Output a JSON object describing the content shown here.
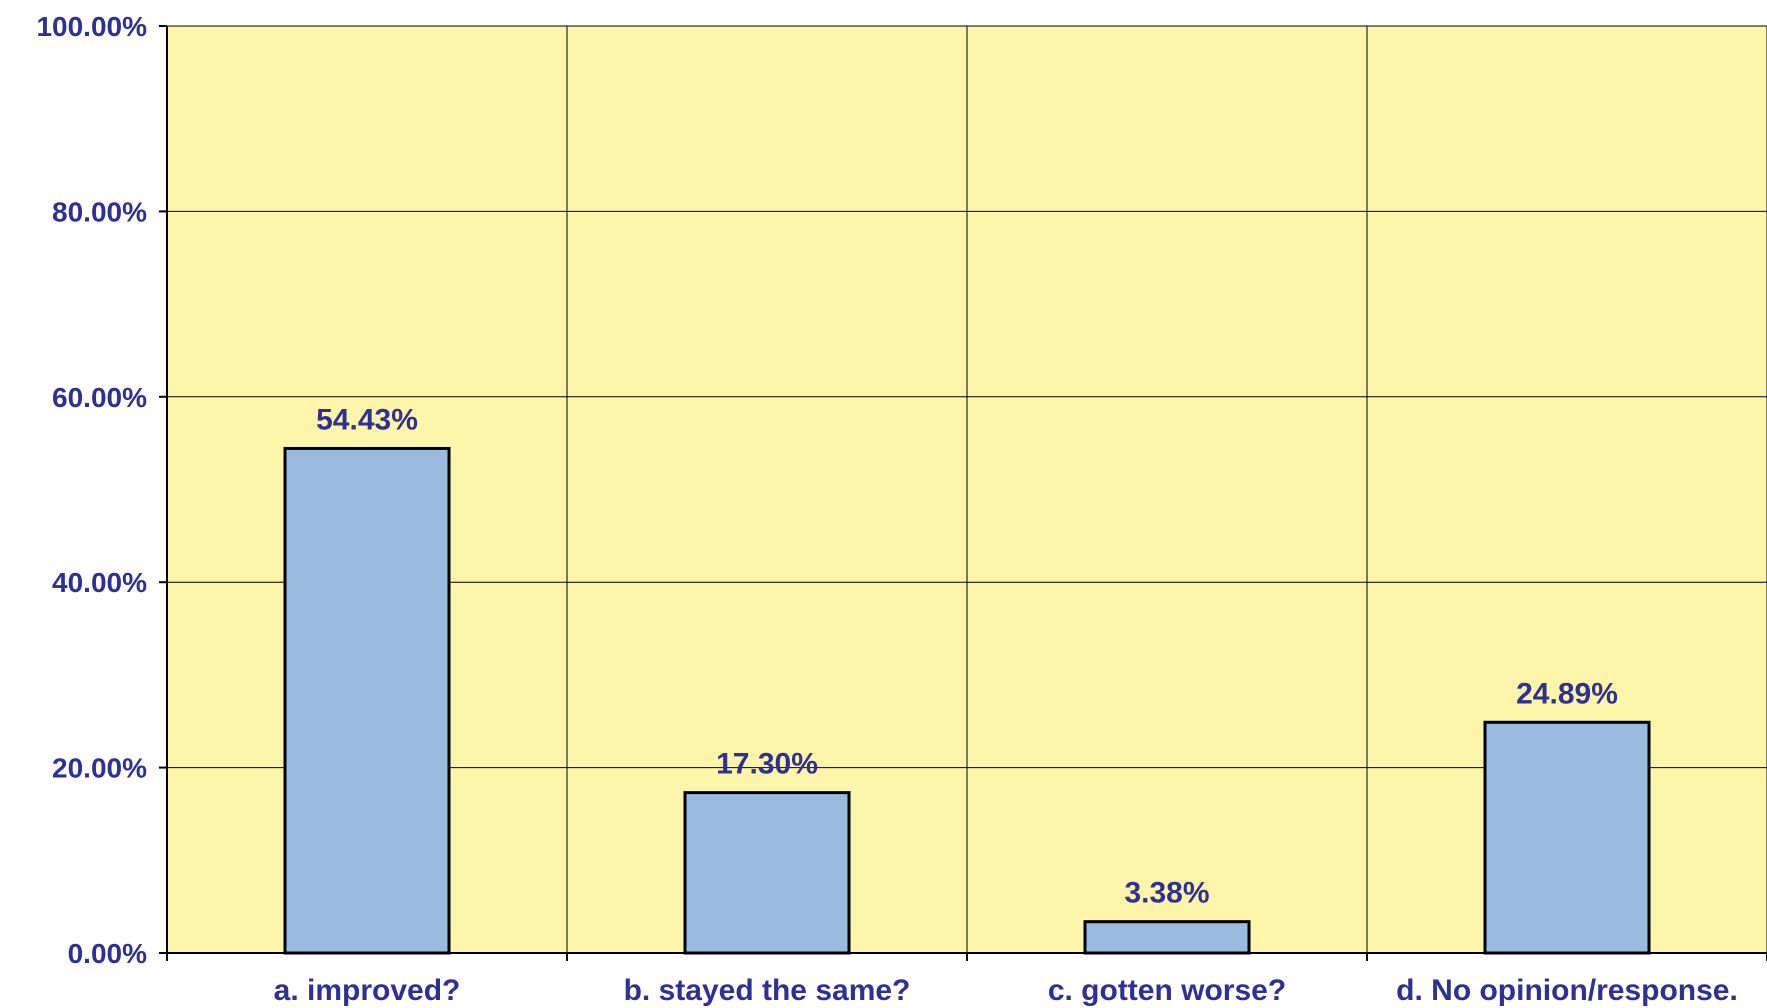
{
  "chart_data": {
    "type": "bar",
    "categories": [
      "a. improved?",
      "b. stayed the same?",
      "c. gotten worse?",
      "d. No opinion/response."
    ],
    "values": [
      54.43,
      17.3,
      3.38,
      24.89
    ],
    "data_labels": [
      "54.43%",
      "17.30%",
      "3.38%",
      "24.89%"
    ],
    "y_ticks": [
      0,
      20,
      40,
      60,
      80,
      100
    ],
    "y_tick_labels": [
      "0.00%",
      "20.00%",
      "40.00%",
      "60.00%",
      "80.00%",
      "100.00%"
    ],
    "ylim": [
      0,
      100
    ],
    "grid": true,
    "colors": {
      "plot_background": "#FDF6AA",
      "bar_fill": "#9BBAE0",
      "bar_stroke": "#000000",
      "grid": "#000000",
      "text": "#2E3192"
    }
  }
}
